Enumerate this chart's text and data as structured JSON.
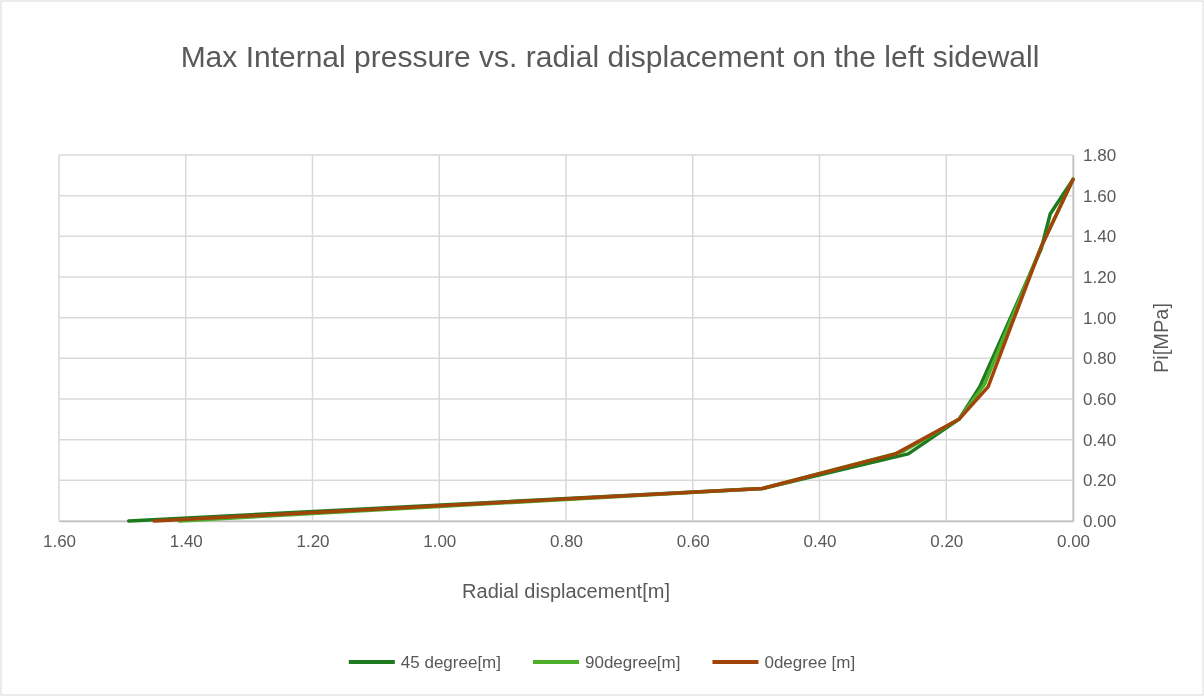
{
  "chart_data": {
    "type": "line",
    "title": "Max Internal pressure vs.  radial displacement  on the left sidewall",
    "xlabel": "Radial displacement[m]",
    "ylabel": "Pi[MPa]",
    "xlim": [
      1.6,
      0
    ],
    "xticks": [
      {
        "value": 1.6,
        "label": "1.60"
      },
      {
        "value": 1.4,
        "label": "1.40"
      },
      {
        "value": 1.2,
        "label": "1.20"
      },
      {
        "value": 1,
        "label": "1.00"
      },
      {
        "value": 0.8,
        "label": "0.80"
      },
      {
        "value": 0.6,
        "label": "0.60"
      },
      {
        "value": 0.4,
        "label": "0.40"
      },
      {
        "value": 0.2,
        "label": "0.20"
      },
      {
        "value": 0,
        "label": "0.00"
      }
    ],
    "ylim": [
      0,
      1.8
    ],
    "yticks": [
      {
        "value": 0,
        "label": "0.00"
      },
      {
        "value": 0.2,
        "label": "0.20"
      },
      {
        "value": 0.4,
        "label": "0.40"
      },
      {
        "value": 0.6,
        "label": "0.60"
      },
      {
        "value": 0.8,
        "label": "0.80"
      },
      {
        "value": 1,
        "label": "1.00"
      },
      {
        "value": 1.2,
        "label": "1.20"
      },
      {
        "value": 1.4,
        "label": "1.40"
      },
      {
        "value": 1.6,
        "label": "1.60"
      },
      {
        "value": 1.8,
        "label": "1.80"
      }
    ],
    "grid": true,
    "legend": "bottom",
    "marker": "none",
    "line_style": "solid",
    "series": [
      {
        "name": "45 degree[m]",
        "color": "#1e7a1e",
        "x": [
          1.49,
          0.49,
          0.26,
          0.18,
          0.147,
          0.05,
          0.036,
          0
        ],
        "values": [
          0,
          0.16,
          0.33,
          0.5,
          0.66,
          1.34,
          1.51,
          1.68
        ]
      },
      {
        "name": "90degree[m]",
        "color": "#4caf2a",
        "x": [
          1.41,
          0.49,
          0.27,
          0.18,
          0.14,
          0.05,
          0
        ],
        "values": [
          0,
          0.16,
          0.34,
          0.5,
          0.67,
          1.35,
          1.68
        ]
      },
      {
        "name": "0degree [m]",
        "color": "#a0440a",
        "x": [
          1.45,
          0.49,
          0.28,
          0.18,
          0.134,
          0.05,
          0
        ],
        "values": [
          0,
          0.16,
          0.33,
          0.5,
          0.66,
          1.35,
          1.68
        ]
      }
    ]
  }
}
